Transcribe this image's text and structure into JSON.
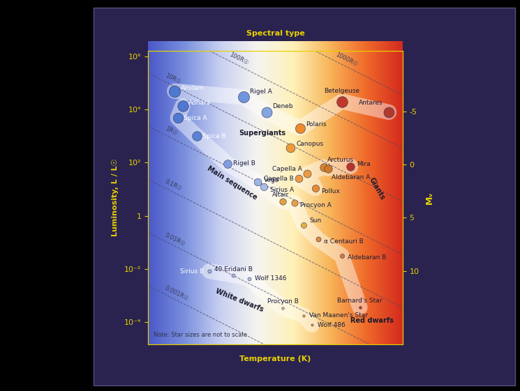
{
  "chart_data": {
    "type": "scatter",
    "x_label": "Temperature (K)",
    "x2_label": "Spectral type",
    "y_label": "Luminosity, L / L☉",
    "y2_label": "Mᵥ",
    "log": true,
    "xlim": [
      40000,
      2500
    ],
    "xticks": [],
    "ylim": [
      1.5e-05,
      1600000
    ],
    "yticks": [
      {
        "value": 0.0001,
        "label": "10⁻⁴"
      },
      {
        "value": 0.01,
        "label": "10⁻²"
      },
      1,
      {
        "value": 100,
        "label": "10²"
      },
      {
        "value": 10000,
        "label": "10⁴"
      },
      {
        "value": 1000000,
        "label": "10⁶"
      }
    ],
    "y2lim": [
      16.86,
      -10.67
    ],
    "y2ticks": [
      -5,
      0,
      5,
      10
    ],
    "tick_labels": "y",
    "labels": [
      "Alnilam",
      "Adhara",
      "Spica A",
      "Spica B",
      "Rigel A",
      "Deneb",
      "Betelgeuse",
      "Antares",
      "Polaris",
      "Canopus",
      "Arcturus",
      "Capella A",
      "Capella B",
      "Aldebaran A",
      "Mira",
      "Pollux",
      "Rigel B",
      "Vega",
      "Sirius A",
      "Altair",
      "Procyon A",
      "Sun",
      "α Centauri B",
      "Aldebaran B",
      "Barnard's Star",
      "Sirius B",
      "40 Eridani B",
      "Wolf 1346",
      "Procyon B",
      "Van Maanen's Star",
      "Wolf 486"
    ],
    "x": [
      30000,
      27500,
      29000,
      23600,
      14100,
      11000,
      4850,
      2900,
      7640,
      8490,
      5900,
      7080,
      7750,
      5640,
      4400,
      6470,
      16900,
      12100,
      11300,
      9230,
      8110,
      7350,
      6270,
      4850,
      3980,
      20500,
      15800,
      13300,
      9230,
      7350,
      6710
    ],
    "values": [
      49000,
      13500,
      4800,
      1000,
      29000,
      7900,
      20000,
      7900,
      2000,
      370,
      68,
      38,
      25,
      60,
      72,
      10.7,
      91,
      19,
      12,
      3.5,
      3.0,
      0.46,
      0.13,
      0.032,
      0.00036,
      0.0083,
      0.0059,
      0.0044,
      0.00034,
      0.00018,
      7.9e-05
    ],
    "colors": [
      "#4f78d0",
      "#4f78d0",
      "#4f78d0",
      "#5a82d6",
      "#6f95dd",
      "#86a6e0",
      "#c0392b",
      "#b03a2e",
      "#ee8a2a",
      "#ee9a3a",
      "#d9822b",
      "#ef9a40",
      "#ef9a40",
      "#cf7a2a",
      "#b8332a",
      "#e88a30",
      "#7f9fe0",
      "#9fb4e6",
      "#a9bde8",
      "#e6a040",
      "#e8a048",
      "#e8b040",
      "#d98a3a",
      "#d47a35",
      "#c0302a",
      "#9fb4e6",
      "#a9bde8",
      "#b3c4ea",
      "#e8c070",
      "#eaa050",
      "#e89a50"
    ],
    "regions": [
      {
        "label": "Supergiants",
        "stars": [
          "Alnilam",
          "Rigel A",
          "Deneb",
          "Polaris",
          "Betelgeuse",
          "Antares"
        ]
      },
      {
        "label": "Giants",
        "stars": [
          "Capella B",
          "Pollux",
          "Capella A",
          "Arcturus",
          "Aldebaran A",
          "Mira"
        ]
      },
      {
        "label": "Main sequence",
        "stars": [
          "Adhara",
          "Spica A",
          "Spica B",
          "Rigel B",
          "Vega",
          "Sirius A",
          "Altair",
          "Procyon A",
          "Sun",
          "α Centauri B",
          "Aldebaran B",
          "Barnard's Star"
        ]
      },
      {
        "label": "White dwarfs",
        "stars": [
          "Sirius B",
          "40 Eridani B",
          "Wolf 1346",
          "Procyon B",
          "Van Maanen's Star",
          "Wolf 486"
        ]
      },
      {
        "label": "Red dwarfs",
        "stars": [
          "Barnard's Star"
        ]
      }
    ],
    "radius_lines": [
      {
        "value": 1000,
        "label": "1000R☉"
      },
      {
        "value": 100,
        "label": "100R☉"
      },
      {
        "value": 10,
        "label": "10R☉"
      },
      {
        "value": 1,
        "label": "1R☉"
      },
      {
        "value": 0.1,
        "label": "0.1R☉"
      },
      {
        "value": 0.01,
        "label": "0.01R☉"
      },
      {
        "value": 0.001,
        "label": "0.001R☉"
      }
    ],
    "note": "Note: Star sizes are not to scale"
  }
}
